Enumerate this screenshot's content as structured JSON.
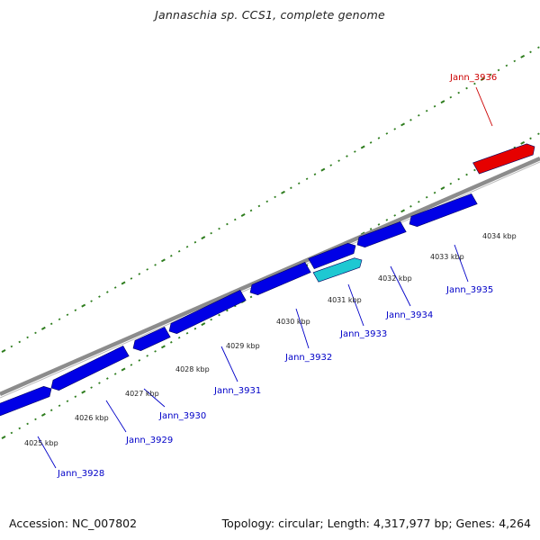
{
  "title": "Jannaschia sp. CCS1, complete genome",
  "footer": {
    "accession": "Accession: NC_007802",
    "summary": "Topology: circular; Length: 4,317,977 bp; Genes: 4,264"
  },
  "colors": {
    "backbone": "#8c8c8c",
    "gene_forward": "#0000e6",
    "gene_reverse": "#0000e6",
    "gene_highlight_cyan": "#1ec8d2",
    "gene_highlight_red": "#e60000",
    "tick": "#2e7d1e",
    "label_blue": "#0000c8",
    "label_red": "#cc0000"
  },
  "tick_labels": [
    "4025 kbp",
    "4026 kbp",
    "4027 kbp",
    "4028 kbp",
    "4029 kbp",
    "4030 kbp",
    "4031 kbp",
    "4032 kbp",
    "4033 kbp",
    "4034 kbp"
  ],
  "gene_labels": [
    {
      "name": "Jann_3928",
      "color": "blue"
    },
    {
      "name": "Jann_3929",
      "color": "blue"
    },
    {
      "name": "Jann_3930",
      "color": "blue"
    },
    {
      "name": "Jann_3931",
      "color": "blue"
    },
    {
      "name": "Jann_3932",
      "color": "blue"
    },
    {
      "name": "Jann_3933",
      "color": "blue"
    },
    {
      "name": "Jann_3934",
      "color": "blue"
    },
    {
      "name": "Jann_3935",
      "color": "blue"
    },
    {
      "name": "Jann_3936",
      "color": "red"
    }
  ]
}
